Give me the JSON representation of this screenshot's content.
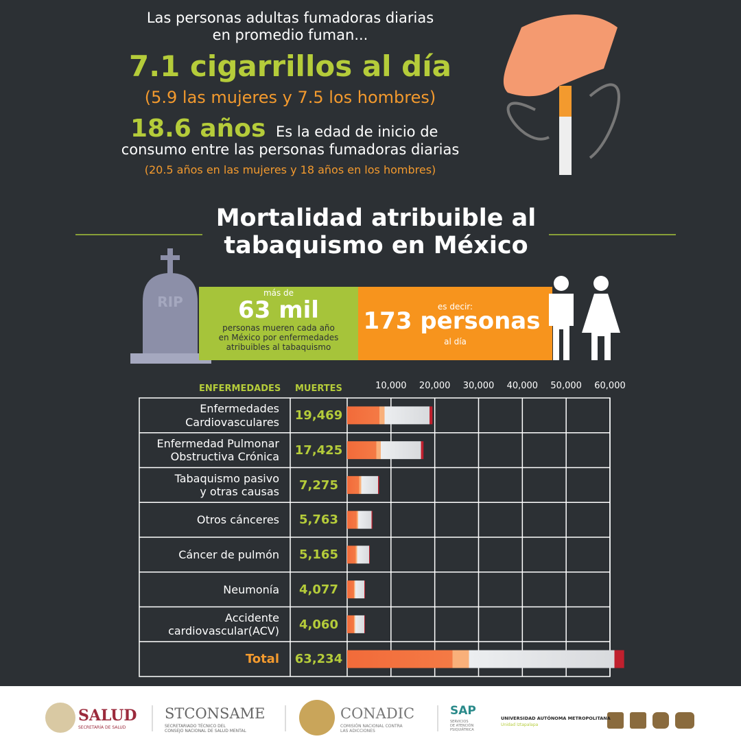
{
  "header": {
    "intro": "Las personas adultas fumadoras diarias\nen promedio fuman...",
    "cigarettes": "7.1 cigarrillos al día",
    "cigarettes_detail": "(5.9 las mujeres y 7.5 los hombres)",
    "age": "18.6 años",
    "age_text_1": "Es la edad de inicio de",
    "age_text_2": "consumo entre las personas fumadoras diarias",
    "age_detail": "(20.5 años en las mujeres y 18 años en los hombres)"
  },
  "section_title": "Mortalidad atribuible al\ntabaquismo en México",
  "banner": {
    "tombstone": "RIP",
    "pre": "más de",
    "big": "63 mil",
    "text": "personas mueren cada año\nen México por enfermedades\natribuibles al tabaquismo",
    "pre2": "es decir:",
    "big2": "173 personas",
    "post2": "al día"
  },
  "chart_data": {
    "type": "bar",
    "orientation": "horizontal",
    "category_header": "ENFERMEDADES",
    "value_header": "MUERTES",
    "categories": [
      "Enfermedades\nCardiovasculares",
      "Enfermedad Pulmonar\nObstructiva Crónica",
      "Tabaquismo pasivo\ny otras causas",
      "Otros cánceres",
      "Cáncer de pulmón",
      "Neumonía",
      "Accidente\ncardiovascular(ACV)",
      "Total"
    ],
    "values": [
      19469,
      17425,
      7275,
      5763,
      5165,
      4077,
      4060,
      63234
    ],
    "value_labels": [
      "19,469",
      "17,425",
      "7,275",
      "5,763",
      "5,165",
      "4,077",
      "4,060",
      "63,234"
    ],
    "xlim": [
      0,
      60000
    ],
    "xticks": [
      {
        "value": 10000,
        "label": "10,000"
      },
      {
        "value": 20000,
        "label": "20,000"
      },
      {
        "value": 30000,
        "label": "30,000"
      },
      {
        "value": 40000,
        "label": "40,000"
      },
      {
        "value": 50000,
        "label": "50,000"
      },
      {
        "value": 60000,
        "label": "60,000"
      }
    ],
    "grid": true,
    "color": "#f26b3a"
  },
  "footer": {
    "salud": "SALUD",
    "salud_sub": "SECRETARÍA DE SALUD",
    "stconsame": "STCONSAME",
    "stconsame_sub": "SECRETARIADO TÉCNICO DEL\nCONSEJO NACIONAL DE SALUD MENTAL",
    "conadic": "CONADIC",
    "conadic_sub": "COMISIÓN NACIONAL CONTRA\nLAS ADICCIONES",
    "sap": "SAP",
    "sap_sub": "SERVICIOS\nDE ATENCIÓN\nPSIQUIÁTRICA",
    "uam": "UNIVERSIDAD AUTÓNOMA METROPOLITANA",
    "uam_sub": "Unidad Iztapalapa"
  }
}
